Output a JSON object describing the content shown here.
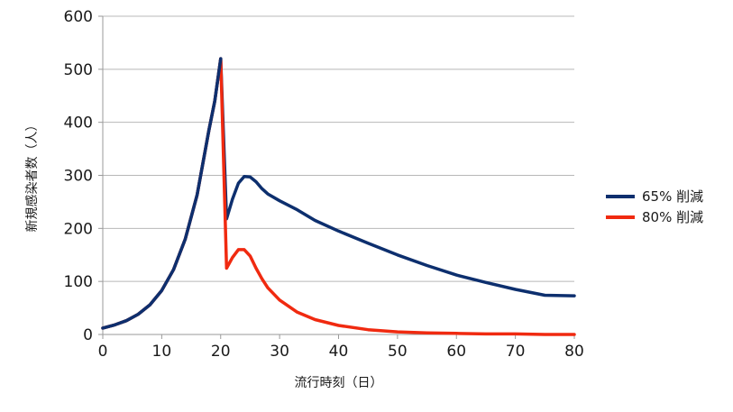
{
  "chart_data": {
    "type": "line",
    "title": "",
    "xlabel": "流行時刻（日）",
    "ylabel": "新規感染者数（人）",
    "xlim": [
      0,
      80
    ],
    "ylim": [
      0,
      600
    ],
    "xticks": [
      0,
      10,
      20,
      30,
      40,
      50,
      60,
      70,
      80
    ],
    "yticks": [
      0,
      100,
      200,
      300,
      400,
      500,
      600
    ],
    "grid": "horizontal",
    "legend_position": "right",
    "series": [
      {
        "name": "65% 削減",
        "color": "#0d2f6e",
        "x": [
          0,
          2,
          4,
          6,
          8,
          10,
          12,
          14,
          16,
          18,
          19,
          20,
          21,
          22,
          23,
          24,
          25,
          26,
          27,
          28,
          30,
          33,
          36,
          40,
          45,
          50,
          55,
          60,
          65,
          70,
          75,
          80
        ],
        "y": [
          12,
          18,
          26,
          38,
          56,
          83,
          122,
          180,
          263,
          385,
          440,
          520,
          218,
          255,
          285,
          298,
          297,
          288,
          275,
          265,
          252,
          235,
          215,
          195,
          172,
          150,
          130,
          112,
          98,
          85,
          74,
          73
        ]
      },
      {
        "name": "80% 削減",
        "color": "#f02a10",
        "x": [
          0,
          2,
          4,
          6,
          8,
          10,
          12,
          14,
          16,
          18,
          19,
          20,
          21,
          22,
          23,
          24,
          25,
          26,
          27,
          28,
          30,
          33,
          36,
          40,
          45,
          50,
          55,
          60,
          65,
          70,
          75,
          80
        ],
        "y": [
          12,
          18,
          26,
          38,
          56,
          83,
          122,
          180,
          263,
          385,
          440,
          520,
          125,
          145,
          160,
          160,
          148,
          125,
          105,
          88,
          65,
          42,
          28,
          17,
          9,
          5,
          3,
          2,
          1,
          1,
          0,
          0
        ]
      }
    ]
  }
}
